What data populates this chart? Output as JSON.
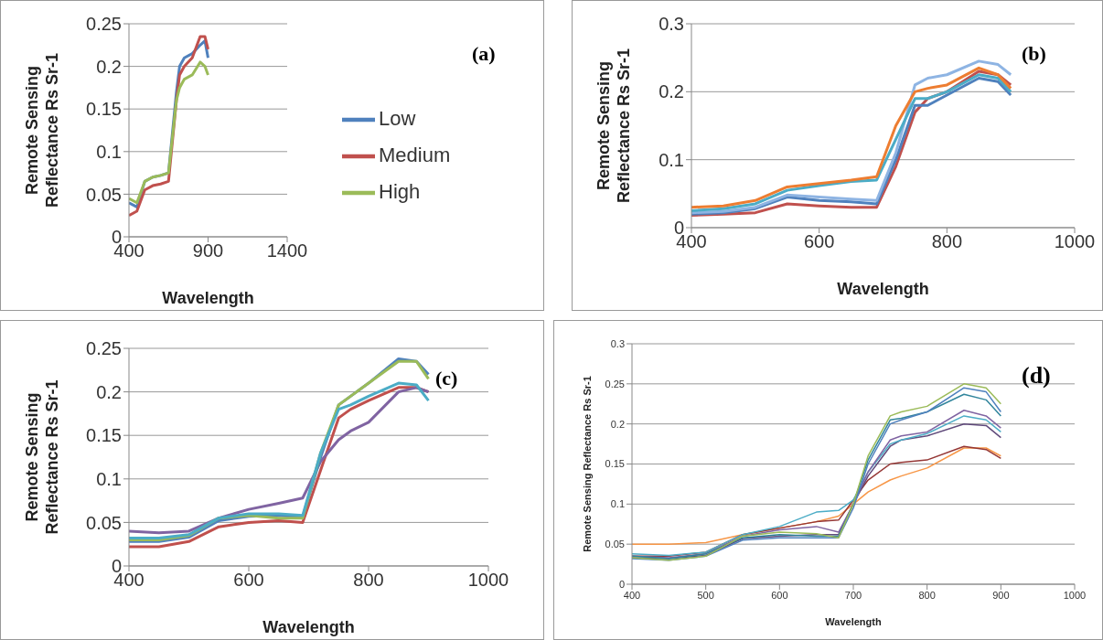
{
  "chart_data": [
    {
      "type": "line",
      "annotations": [
        "(a)"
      ],
      "xlabel": "Wavelength",
      "ylabel": "Remote Sensing Reflectance Rs Sr-1",
      "x": [
        400,
        450,
        500,
        550,
        600,
        650,
        700,
        720,
        750,
        800,
        850,
        880,
        900
      ],
      "xlim": [
        400,
        1400
      ],
      "xticks": [
        400,
        900,
        1400
      ],
      "ylim": [
        0,
        0.25
      ],
      "yticks": [
        0,
        0.05,
        0.1,
        0.15,
        0.2,
        0.25
      ],
      "grid": "y",
      "legend": "right",
      "series": [
        {
          "name": "Low",
          "color": "#4f81bd",
          "values": [
            0.04,
            0.035,
            0.065,
            0.07,
            0.072,
            0.075,
            0.17,
            0.2,
            0.21,
            0.215,
            0.225,
            0.23,
            0.21
          ]
        },
        {
          "name": "Medium",
          "color": "#c0504d",
          "values": [
            0.025,
            0.03,
            0.055,
            0.06,
            0.062,
            0.065,
            0.16,
            0.19,
            0.2,
            0.21,
            0.235,
            0.235,
            0.22
          ]
        },
        {
          "name": "High",
          "color": "#9bbb59",
          "values": [
            0.045,
            0.04,
            0.065,
            0.07,
            0.072,
            0.075,
            0.16,
            0.175,
            0.185,
            0.19,
            0.205,
            0.2,
            0.19
          ]
        }
      ]
    },
    {
      "type": "line",
      "annotations": [
        "(b)"
      ],
      "xlabel": "Wavelength",
      "ylabel": "Remote Sensing Reflectance Rs Sr-1",
      "x": [
        400,
        450,
        500,
        550,
        600,
        650,
        690,
        720,
        750,
        770,
        800,
        850,
        880,
        900
      ],
      "xlim": [
        400,
        1000
      ],
      "xticks": [
        400,
        600,
        800,
        1000
      ],
      "ylim": [
        0,
        0.3
      ],
      "yticks": [
        0,
        0.1,
        0.2,
        0.3
      ],
      "grid": "y",
      "series": [
        {
          "color": "#c0504d",
          "values": [
            0.018,
            0.02,
            0.022,
            0.035,
            0.032,
            0.03,
            0.03,
            0.09,
            0.17,
            0.19,
            0.2,
            0.23,
            0.225,
            0.21
          ]
        },
        {
          "color": "#4f81bd",
          "values": [
            0.02,
            0.022,
            0.028,
            0.045,
            0.04,
            0.038,
            0.035,
            0.1,
            0.18,
            0.18,
            0.195,
            0.22,
            0.215,
            0.195
          ]
        },
        {
          "color": "#8eb4e3",
          "values": [
            0.022,
            0.024,
            0.03,
            0.048,
            0.045,
            0.042,
            0.04,
            0.11,
            0.21,
            0.22,
            0.225,
            0.245,
            0.24,
            0.225
          ]
        },
        {
          "color": "#4bacc6",
          "values": [
            0.025,
            0.028,
            0.035,
            0.055,
            0.062,
            0.068,
            0.07,
            0.13,
            0.19,
            0.19,
            0.2,
            0.225,
            0.22,
            0.2
          ]
        },
        {
          "color": "#ed7d31",
          "values": [
            0.03,
            0.032,
            0.04,
            0.06,
            0.065,
            0.07,
            0.075,
            0.15,
            0.2,
            0.205,
            0.21,
            0.235,
            0.225,
            0.205
          ]
        }
      ]
    },
    {
      "type": "line",
      "annotations": [
        "(c)"
      ],
      "xlabel": "Wavelength",
      "ylabel": "Remote Sensing Reflectance Rs Sr-1",
      "x": [
        400,
        450,
        500,
        550,
        600,
        650,
        690,
        720,
        750,
        770,
        800,
        850,
        880,
        900
      ],
      "xlim": [
        400,
        1000
      ],
      "xticks": [
        400,
        600,
        800,
        1000
      ],
      "ylim": [
        0,
        0.25
      ],
      "yticks": [
        0,
        0.05,
        0.1,
        0.15,
        0.2,
        0.25
      ],
      "grid": "y",
      "series": [
        {
          "color": "#c0504d",
          "values": [
            0.022,
            0.022,
            0.028,
            0.045,
            0.05,
            0.052,
            0.05,
            0.11,
            0.17,
            0.18,
            0.19,
            0.205,
            0.205,
            0.2
          ]
        },
        {
          "color": "#8064a2",
          "values": [
            0.04,
            0.038,
            0.04,
            0.055,
            0.065,
            0.072,
            0.078,
            0.12,
            0.145,
            0.155,
            0.165,
            0.2,
            0.205,
            0.2
          ]
        },
        {
          "color": "#4f81bd",
          "values": [
            0.028,
            0.028,
            0.033,
            0.052,
            0.057,
            0.058,
            0.056,
            0.125,
            0.185,
            0.195,
            0.21,
            0.238,
            0.235,
            0.22
          ]
        },
        {
          "color": "#9bbb59",
          "values": [
            0.03,
            0.03,
            0.035,
            0.055,
            0.058,
            0.055,
            0.055,
            0.13,
            0.185,
            0.195,
            0.21,
            0.235,
            0.235,
            0.215
          ]
        },
        {
          "color": "#4bacc6",
          "values": [
            0.032,
            0.032,
            0.036,
            0.055,
            0.06,
            0.06,
            0.058,
            0.13,
            0.18,
            0.185,
            0.195,
            0.21,
            0.208,
            0.19
          ]
        }
      ]
    },
    {
      "type": "line",
      "annotations": [
        "(d)"
      ],
      "xlabel": "Wavelength",
      "ylabel": "Remote Sensing Reflectance Rs Sr-1",
      "x": [
        400,
        450,
        500,
        550,
        600,
        650,
        680,
        700,
        720,
        750,
        765,
        800,
        850,
        880,
        900
      ],
      "xlim": [
        400,
        1000
      ],
      "xticks": [
        400,
        500,
        600,
        700,
        800,
        900,
        1000
      ],
      "ylim": [
        0,
        0.3
      ],
      "yticks": [
        0,
        0.05,
        0.1,
        0.15,
        0.2,
        0.25,
        0.3
      ],
      "grid": "y",
      "series": [
        {
          "color": "#f79646",
          "values": [
            0.05,
            0.05,
            0.052,
            0.062,
            0.07,
            0.078,
            0.085,
            0.1,
            0.115,
            0.13,
            0.135,
            0.145,
            0.17,
            0.17,
            0.16
          ]
        },
        {
          "color": "#953735",
          "values": [
            0.035,
            0.035,
            0.04,
            0.062,
            0.07,
            0.078,
            0.08,
            0.105,
            0.13,
            0.15,
            0.152,
            0.155,
            0.172,
            0.168,
            0.157
          ]
        },
        {
          "color": "#5f497a",
          "values": [
            0.033,
            0.032,
            0.036,
            0.057,
            0.06,
            0.062,
            0.062,
            0.1,
            0.135,
            0.172,
            0.18,
            0.185,
            0.2,
            0.198,
            0.183
          ]
        },
        {
          "color": "#4bacc6",
          "values": [
            0.038,
            0.036,
            0.04,
            0.062,
            0.072,
            0.09,
            0.092,
            0.105,
            0.14,
            0.175,
            0.18,
            0.188,
            0.21,
            0.205,
            0.19
          ]
        },
        {
          "color": "#8064a2",
          "values": [
            0.035,
            0.033,
            0.038,
            0.06,
            0.068,
            0.072,
            0.065,
            0.1,
            0.14,
            0.18,
            0.185,
            0.19,
            0.217,
            0.21,
            0.195
          ]
        },
        {
          "color": "#31859c",
          "values": [
            0.035,
            0.032,
            0.038,
            0.058,
            0.062,
            0.06,
            0.06,
            0.1,
            0.155,
            0.205,
            0.207,
            0.215,
            0.237,
            0.23,
            0.21
          ]
        },
        {
          "color": "#4f81bd",
          "values": [
            0.032,
            0.03,
            0.035,
            0.055,
            0.058,
            0.058,
            0.058,
            0.095,
            0.15,
            0.2,
            0.205,
            0.215,
            0.245,
            0.24,
            0.215
          ]
        },
        {
          "color": "#9bbb59",
          "values": [
            0.033,
            0.03,
            0.035,
            0.06,
            0.065,
            0.063,
            0.058,
            0.1,
            0.16,
            0.21,
            0.215,
            0.222,
            0.25,
            0.245,
            0.225
          ]
        }
      ]
    }
  ]
}
